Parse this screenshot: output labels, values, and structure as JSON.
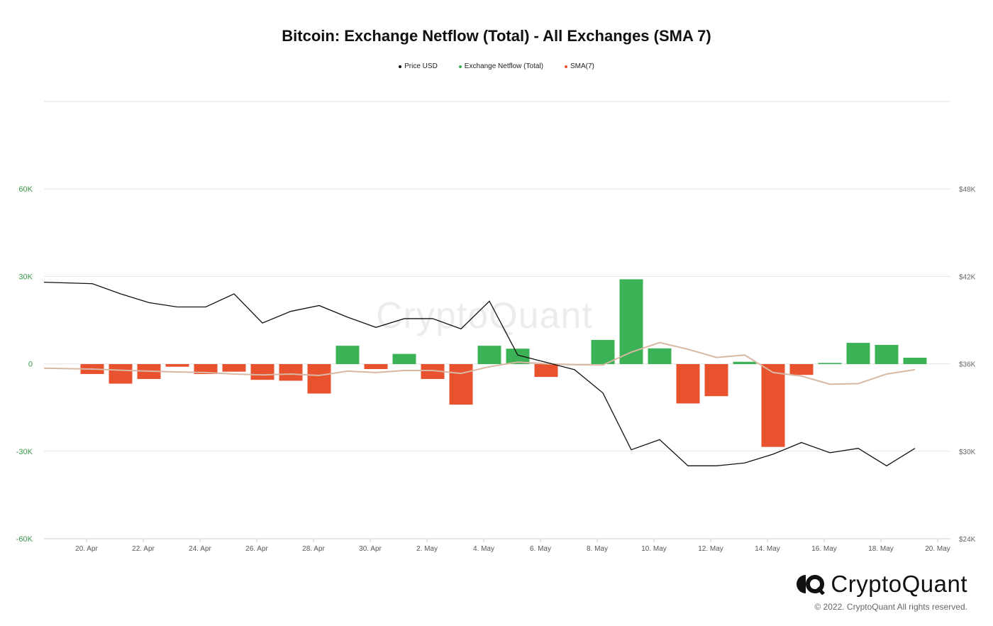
{
  "title": "Bitcoin: Exchange Netflow (Total) - All Exchanges (SMA 7)",
  "legend": [
    {
      "label": "Price USD",
      "color": "#111111"
    },
    {
      "label": "Exchange Netflow (Total)",
      "color": "#3cb257"
    },
    {
      "label": "SMA(7)",
      "color": "#e8522f"
    }
  ],
  "watermark": "CryptoQuant",
  "brand": "CryptoQuant",
  "copyright": "© 2022. CryptoQuant All rights reserved.",
  "colors": {
    "positive": "#3cb257",
    "negative": "#e8522f",
    "price": "#111111",
    "sma": "#d9b8a3",
    "left_axis": "#3c9a4a",
    "right_axis": "#666666"
  },
  "chart_data": {
    "type": "bar",
    "x_ticks": [
      "20. Apr",
      "22. Apr",
      "24. Apr",
      "26. Apr",
      "28. Apr",
      "30. Apr",
      "2. May",
      "4. May",
      "6. May",
      "8. May",
      "10. May",
      "12. May",
      "14. May",
      "16. May",
      "18. May",
      "20. May"
    ],
    "y_left": {
      "ticks": [
        "60K",
        "30K",
        "0",
        "-30K",
        "-60K"
      ],
      "tick_values": [
        60000,
        30000,
        0,
        -30000,
        -60000
      ],
      "range": [
        -60000,
        90000
      ]
    },
    "y_right": {
      "ticks": [
        "$48K",
        "$42K",
        "$36K",
        "$30K",
        "$24K"
      ],
      "tick_values": [
        48000,
        42000,
        36000,
        30000,
        24000
      ],
      "range": [
        24000,
        54000
      ]
    },
    "grid": true,
    "legend_position": "top-center",
    "dates": [
      "19 Apr",
      "20 Apr",
      "21 Apr",
      "22 Apr",
      "23 Apr",
      "24 Apr",
      "25 Apr",
      "26 Apr",
      "27 Apr",
      "28 Apr",
      "29 Apr",
      "30 Apr",
      "1 May",
      "2 May",
      "3 May",
      "4 May",
      "5 May",
      "6 May",
      "7 May",
      "8 May",
      "9 May",
      "10 May",
      "11 May",
      "12 May",
      "13 May",
      "14 May",
      "15 May",
      "16 May",
      "17 May",
      "18 May",
      "19 May"
    ],
    "series": [
      {
        "name": "Exchange Netflow (Total)",
        "kind": "bar",
        "values": [
          null,
          -3500,
          -6800,
          -5200,
          -1000,
          -3500,
          -2700,
          -5500,
          -5800,
          -10200,
          6200,
          -1800,
          3400,
          -5200,
          -14000,
          6200,
          5200,
          -4500,
          null,
          8200,
          29000,
          5300,
          -13600,
          -11100,
          700,
          -28500,
          -3800,
          300,
          7200,
          6500,
          2100
        ]
      },
      {
        "name": "Price USD",
        "kind": "line",
        "values": [
          41600,
          41500,
          40800,
          40200,
          39900,
          39900,
          40800,
          38800,
          39600,
          40000,
          39200,
          38500,
          39100,
          39100,
          38400,
          40300,
          36600,
          36100,
          35600,
          34000,
          30100,
          30800,
          29000,
          29000,
          29200,
          29800,
          30600,
          29900,
          30200,
          29000,
          30200
        ]
      },
      {
        "name": "SMA(7)",
        "kind": "line",
        "values": [
          -1500,
          -1800,
          -2200,
          -2500,
          -2800,
          -3000,
          -3500,
          -3800,
          -3500,
          -4000,
          -2500,
          -3000,
          -2300,
          -2300,
          -3300,
          -1000,
          600,
          0,
          -300,
          -400,
          4000,
          7300,
          5000,
          2200,
          3000,
          -3000,
          -4200,
          -7000,
          -6800,
          -3500,
          -2000
        ]
      }
    ]
  }
}
